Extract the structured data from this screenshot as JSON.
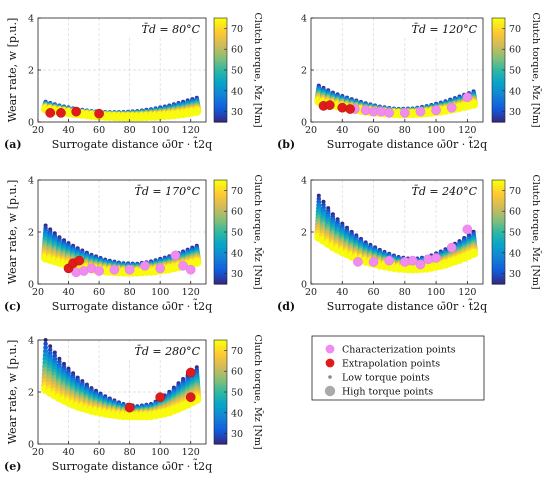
{
  "figure": {
    "legend": {
      "items": [
        {
          "label": "Characterization points",
          "color": "#f08cf0",
          "marker": "circle-medium"
        },
        {
          "label": "Extrapolation points",
          "color": "#e01b1b",
          "marker": "circle-medium"
        },
        {
          "label": "Low torque points",
          "color": "#888888",
          "marker": "circle-small"
        },
        {
          "label": "High torque points",
          "color": "#aaaaaa",
          "marker": "circle-large"
        }
      ]
    },
    "colormap": [
      "#352a87",
      "#0f5cdd",
      "#1481d6",
      "#06a4ca",
      "#2eb7a4",
      "#87bf77",
      "#d1bb59",
      "#fec832",
      "#f9fb0e"
    ]
  },
  "chart_data": [
    {
      "type": "scatter",
      "panel_label": "(a)",
      "inset_title": "T̄d = 80°C",
      "xlabel": "Surrogate distance ω̄0r · t̃2q",
      "ylabel": "Wear rate, w [p.u.]",
      "colorbar_label": "Clutch torque, M̄z [Nm]",
      "xlim": [
        20,
        130
      ],
      "ylim": [
        0,
        4
      ],
      "xticks": [
        "20",
        "40",
        "60",
        "80",
        "100",
        "120"
      ],
      "yticks": [
        "0",
        "2",
        "4"
      ],
      "colorbar_range": [
        25,
        75
      ],
      "colorbar_ticks": [
        "30",
        "40",
        "50",
        "60",
        "70"
      ],
      "band": {
        "x": [
          25,
          35,
          45,
          55,
          65,
          75,
          85,
          95,
          105,
          115,
          125
        ],
        "low_torque": [
          0.78,
          0.62,
          0.5,
          0.42,
          0.38,
          0.38,
          0.42,
          0.5,
          0.62,
          0.78,
          0.95
        ],
        "high_torque": [
          0.5,
          0.4,
          0.32,
          0.26,
          0.22,
          0.2,
          0.2,
          0.22,
          0.26,
          0.32,
          0.42
        ]
      },
      "characterization_points": [],
      "extrapolation_points": [
        [
          28,
          0.35
        ],
        [
          35,
          0.35
        ],
        [
          45,
          0.4
        ],
        [
          60,
          0.32
        ]
      ]
    },
    {
      "type": "scatter",
      "panel_label": "(b)",
      "inset_title": "T̄d = 120°C",
      "xlabel": "Surrogate distance ω̄0r · t̃2q",
      "ylabel": "",
      "colorbar_label": "Clutch torque, M̄z [Nm]",
      "xlim": [
        20,
        130
      ],
      "ylim": [
        0,
        4
      ],
      "xticks": [
        "20",
        "40",
        "60",
        "80",
        "100",
        "120"
      ],
      "yticks": [
        "0",
        "2",
        "4"
      ],
      "colorbar_range": [
        25,
        75
      ],
      "colorbar_ticks": [
        "30",
        "40",
        "50",
        "60",
        "70"
      ],
      "band": {
        "x": [
          25,
          35,
          45,
          55,
          65,
          75,
          85,
          95,
          105,
          115,
          125
        ],
        "low_torque": [
          1.4,
          1.1,
          0.9,
          0.72,
          0.58,
          0.5,
          0.52,
          0.62,
          0.78,
          0.98,
          1.2
        ],
        "high_torque": [
          0.8,
          0.65,
          0.52,
          0.42,
          0.36,
          0.32,
          0.32,
          0.36,
          0.44,
          0.56,
          0.7
        ]
      },
      "characterization_points": [
        [
          48,
          0.5
        ],
        [
          55,
          0.45
        ],
        [
          60,
          0.4
        ],
        [
          65,
          0.4
        ],
        [
          70,
          0.35
        ],
        [
          80,
          0.35
        ],
        [
          90,
          0.4
        ],
        [
          100,
          0.45
        ],
        [
          110,
          0.55
        ],
        [
          120,
          0.95
        ]
      ],
      "extrapolation_points": [
        [
          28,
          0.62
        ],
        [
          32,
          0.65
        ],
        [
          40,
          0.55
        ],
        [
          45,
          0.5
        ]
      ]
    },
    {
      "type": "scatter",
      "panel_label": "(c)",
      "inset_title": "T̄d = 170°C",
      "xlabel": "Surrogate distance ω̄0r · t̃2q",
      "ylabel": "Wear rate, w [p.u.]",
      "colorbar_label": "Clutch torque, M̄z [Nm]",
      "xlim": [
        20,
        130
      ],
      "ylim": [
        0,
        4
      ],
      "xticks": [
        "20",
        "40",
        "60",
        "80",
        "100",
        "120"
      ],
      "yticks": [
        "0",
        "2",
        "4"
      ],
      "colorbar_range": [
        25,
        75
      ],
      "colorbar_ticks": [
        "30",
        "40",
        "50",
        "60",
        "70"
      ],
      "band": {
        "x": [
          25,
          35,
          45,
          55,
          65,
          75,
          85,
          95,
          105,
          115,
          125
        ],
        "low_torque": [
          2.25,
          1.75,
          1.4,
          1.12,
          0.92,
          0.8,
          0.78,
          0.88,
          1.05,
          1.25,
          1.5
        ],
        "high_torque": [
          1.0,
          0.82,
          0.68,
          0.58,
          0.5,
          0.46,
          0.46,
          0.5,
          0.58,
          0.7,
          0.85
        ]
      },
      "characterization_points": [
        [
          45,
          0.45
        ],
        [
          50,
          0.5
        ],
        [
          55,
          0.6
        ],
        [
          60,
          0.5
        ],
        [
          70,
          0.55
        ],
        [
          80,
          0.55
        ],
        [
          90,
          0.7
        ],
        [
          100,
          0.6
        ],
        [
          110,
          1.1
        ],
        [
          115,
          0.7
        ],
        [
          120,
          0.55
        ]
      ],
      "extrapolation_points": [
        [
          40,
          0.6
        ],
        [
          43,
          0.8
        ],
        [
          47,
          0.9
        ]
      ]
    },
    {
      "type": "scatter",
      "panel_label": "(d)",
      "inset_title": "T̄d = 240°C",
      "xlabel": "Surrogate distance ω̄0r · t̃2q",
      "ylabel": "",
      "colorbar_label": "Clutch torque, M̄z [Nm]",
      "xlim": [
        20,
        130
      ],
      "ylim": [
        0,
        4
      ],
      "xticks": [
        "20",
        "40",
        "60",
        "80",
        "100",
        "120"
      ],
      "yticks": [
        "0",
        "2",
        "4"
      ],
      "colorbar_range": [
        25,
        75
      ],
      "colorbar_ticks": [
        "30",
        "40",
        "50",
        "60",
        "70"
      ],
      "band": {
        "x": [
          25,
          35,
          45,
          55,
          65,
          75,
          85,
          95,
          105,
          115,
          125
        ],
        "low_torque": [
          3.4,
          2.6,
          2.05,
          1.6,
          1.28,
          1.05,
          0.95,
          1.05,
          1.3,
          1.65,
          2.05
        ],
        "high_torque": [
          1.8,
          1.4,
          1.1,
          0.88,
          0.72,
          0.62,
          0.58,
          0.62,
          0.75,
          0.95,
          1.2
        ]
      },
      "characterization_points": [
        [
          50,
          0.85
        ],
        [
          60,
          0.85
        ],
        [
          70,
          0.9
        ],
        [
          80,
          0.85
        ],
        [
          85,
          0.9
        ],
        [
          90,
          0.75
        ],
        [
          95,
          0.95
        ],
        [
          100,
          1.0
        ],
        [
          110,
          1.4
        ],
        [
          120,
          2.1
        ]
      ],
      "extrapolation_points": []
    },
    {
      "type": "scatter",
      "panel_label": "(e)",
      "inset_title": "T̄d = 280°C",
      "xlabel": "Surrogate distance ω̄0r · t̃2q",
      "ylabel": "Wear rate, w [p.u.]",
      "colorbar_label": "Clutch torque, M̄z [Nm]",
      "xlim": [
        20,
        130
      ],
      "ylim": [
        0,
        4
      ],
      "xticks": [
        "20",
        "40",
        "60",
        "80",
        "100",
        "120"
      ],
      "yticks": [
        "0",
        "2",
        "4"
      ],
      "colorbar_range": [
        25,
        75
      ],
      "colorbar_ticks": [
        "30",
        "40",
        "50",
        "60",
        "70"
      ],
      "band": {
        "x": [
          25,
          35,
          45,
          55,
          65,
          75,
          85,
          95,
          105,
          115,
          125
        ],
        "low_torque": [
          4.0,
          3.2,
          2.6,
          2.15,
          1.8,
          1.55,
          1.45,
          1.55,
          1.95,
          2.5,
          3.0
        ],
        "high_torque": [
          2.1,
          1.75,
          1.48,
          1.3,
          1.18,
          1.1,
          1.08,
          1.1,
          1.22,
          1.45,
          1.75
        ]
      },
      "characterization_points": [],
      "extrapolation_points": [
        [
          80,
          1.4
        ],
        [
          100,
          1.8
        ],
        [
          120,
          2.75
        ],
        [
          120,
          1.8
        ]
      ]
    }
  ]
}
